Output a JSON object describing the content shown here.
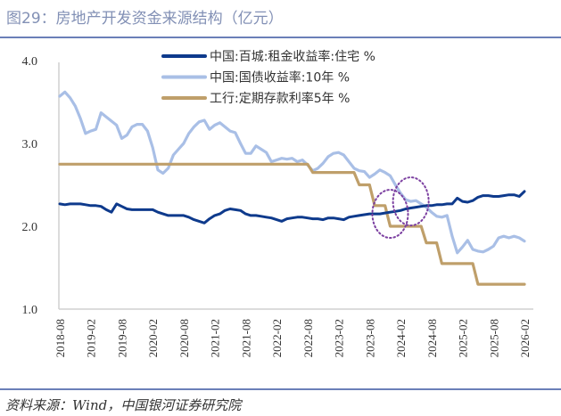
{
  "header": {
    "title": "图29：房地产开发资金来源结构（亿元）"
  },
  "footer": {
    "source": "资料来源：Wind，中国银河证券研究院"
  },
  "chart_data": {
    "type": "line",
    "title": "",
    "xlabel": "",
    "ylabel": "",
    "ylim": [
      1.0,
      4.0
    ],
    "yticks": [
      "4.0",
      "3.0",
      "2.0",
      "1.0"
    ],
    "xtick_labels": [
      "2018-08",
      "2019-02",
      "2019-08",
      "2020-02",
      "2020-08",
      "2021-02",
      "2021-08",
      "2022-02",
      "2022-08",
      "2023-02",
      "2023-08",
      "2024-02",
      "2024-08",
      "2025-02",
      "2025-08",
      "2026-02"
    ],
    "grid": false,
    "legend_position": "top-center",
    "x": [
      "2018-08",
      "2018-09",
      "2018-10",
      "2018-11",
      "2018-12",
      "2019-01",
      "2019-02",
      "2019-03",
      "2019-04",
      "2019-05",
      "2019-06",
      "2019-07",
      "2019-08",
      "2019-09",
      "2019-10",
      "2019-11",
      "2019-12",
      "2020-01",
      "2020-02",
      "2020-03",
      "2020-04",
      "2020-05",
      "2020-06",
      "2020-07",
      "2020-08",
      "2020-09",
      "2020-10",
      "2020-11",
      "2020-12",
      "2021-01",
      "2021-02",
      "2021-03",
      "2021-04",
      "2021-05",
      "2021-06",
      "2021-07",
      "2021-08",
      "2021-09",
      "2021-10",
      "2021-11",
      "2021-12",
      "2022-01",
      "2022-02",
      "2022-03",
      "2022-04",
      "2022-05",
      "2022-06",
      "2022-07",
      "2022-08",
      "2022-09",
      "2022-10",
      "2022-11",
      "2022-12",
      "2023-01",
      "2023-02",
      "2023-03",
      "2023-04",
      "2023-05",
      "2023-06",
      "2023-07",
      "2023-08",
      "2023-09",
      "2023-10",
      "2023-11",
      "2023-12",
      "2024-01",
      "2024-02",
      "2024-03",
      "2024-04",
      "2024-05",
      "2024-06",
      "2024-07",
      "2024-08",
      "2024-09",
      "2024-10",
      "2024-11",
      "2024-12",
      "2025-01",
      "2025-02",
      "2025-03",
      "2025-04",
      "2025-05",
      "2025-06",
      "2025-07",
      "2025-08",
      "2025-09",
      "2025-10",
      "2025-11",
      "2025-12",
      "2026-01",
      "2026-02"
    ],
    "series": [
      {
        "name": "中国:百城:租金收益率:住宅 %",
        "color": "#0e3a8c",
        "values": [
          2.27,
          2.26,
          2.27,
          2.27,
          2.27,
          2.26,
          2.25,
          2.25,
          2.24,
          2.2,
          2.17,
          2.27,
          2.24,
          2.21,
          2.2,
          2.2,
          2.2,
          2.2,
          2.2,
          2.17,
          2.15,
          2.13,
          2.13,
          2.13,
          2.13,
          2.11,
          2.08,
          2.06,
          2.04,
          2.09,
          2.13,
          2.15,
          2.19,
          2.21,
          2.2,
          2.19,
          2.15,
          2.13,
          2.13,
          2.12,
          2.11,
          2.1,
          2.08,
          2.06,
          2.09,
          2.1,
          2.11,
          2.11,
          2.1,
          2.09,
          2.09,
          2.08,
          2.1,
          2.1,
          2.09,
          2.08,
          2.11,
          2.12,
          2.13,
          2.14,
          2.15,
          2.15,
          2.15,
          2.16,
          2.17,
          2.18,
          2.19,
          2.21,
          2.22,
          2.23,
          2.24,
          2.25,
          2.25,
          2.26,
          2.26,
          2.27,
          2.27,
          2.34,
          2.3,
          2.29,
          2.31,
          2.35,
          2.37,
          2.37,
          2.36,
          2.36,
          2.37,
          2.38,
          2.38,
          2.36,
          2.42
        ]
      },
      {
        "name": "中国:国债收益率:10年 %",
        "color": "#a9bfe6",
        "values": [
          3.57,
          3.62,
          3.55,
          3.45,
          3.3,
          3.12,
          3.15,
          3.17,
          3.37,
          3.32,
          3.27,
          3.22,
          3.06,
          3.1,
          3.2,
          3.23,
          3.23,
          3.15,
          2.95,
          2.68,
          2.64,
          2.7,
          2.86,
          2.93,
          3.0,
          3.12,
          3.2,
          3.26,
          3.28,
          3.17,
          3.22,
          3.25,
          3.2,
          3.15,
          3.13,
          3.0,
          2.88,
          2.88,
          2.97,
          2.93,
          2.89,
          2.78,
          2.8,
          2.82,
          2.81,
          2.82,
          2.78,
          2.8,
          2.74,
          2.67,
          2.7,
          2.76,
          2.84,
          2.88,
          2.89,
          2.86,
          2.78,
          2.7,
          2.67,
          2.66,
          2.59,
          2.63,
          2.68,
          2.65,
          2.61,
          2.5,
          2.4,
          2.32,
          2.3,
          2.31,
          2.27,
          2.23,
          2.17,
          2.12,
          2.11,
          2.13,
          1.88,
          1.68,
          1.75,
          1.83,
          1.72,
          1.7,
          1.69,
          1.72,
          1.76,
          1.86,
          1.88,
          1.86,
          1.88,
          1.86,
          1.82
        ]
      },
      {
        "name": "工行:定期存款利率5年 %",
        "color": "#bf9f6a",
        "values": [
          2.75,
          2.75,
          2.75,
          2.75,
          2.75,
          2.75,
          2.75,
          2.75,
          2.75,
          2.75,
          2.75,
          2.75,
          2.75,
          2.75,
          2.75,
          2.75,
          2.75,
          2.75,
          2.75,
          2.75,
          2.75,
          2.75,
          2.75,
          2.75,
          2.75,
          2.75,
          2.75,
          2.75,
          2.75,
          2.75,
          2.75,
          2.75,
          2.75,
          2.75,
          2.75,
          2.75,
          2.75,
          2.75,
          2.75,
          2.75,
          2.75,
          2.75,
          2.75,
          2.75,
          2.75,
          2.75,
          2.75,
          2.75,
          2.75,
          2.65,
          2.65,
          2.65,
          2.65,
          2.65,
          2.65,
          2.65,
          2.65,
          2.65,
          2.5,
          2.5,
          2.5,
          2.25,
          2.25,
          2.25,
          2.0,
          2.0,
          2.0,
          2.0,
          2.0,
          2.0,
          2.0,
          1.8,
          1.8,
          1.8,
          1.55,
          1.55,
          1.55,
          1.55,
          1.55,
          1.55,
          1.55,
          1.3,
          1.3,
          1.3,
          1.3,
          1.3,
          1.3,
          1.3,
          1.3,
          1.3,
          1.3
        ]
      }
    ],
    "annotations": [
      {
        "type": "dotted-ellipse",
        "color": "#7b3fa0",
        "around": [
          "2023-12",
          2.15
        ]
      },
      {
        "type": "dotted-ellipse",
        "color": "#7b3fa0",
        "around": [
          "2024-04",
          2.3
        ]
      }
    ]
  }
}
